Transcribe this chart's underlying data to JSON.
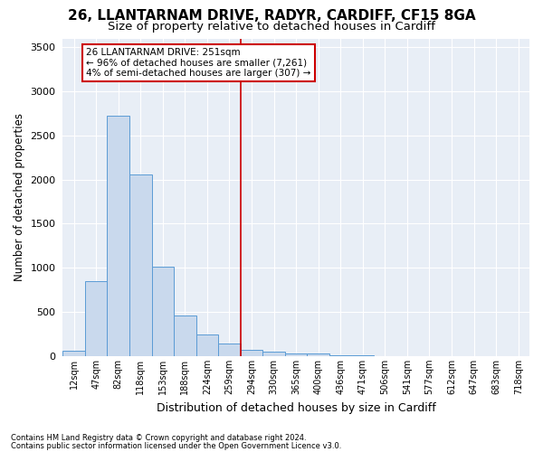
{
  "title_line1": "26, LLANTARNAM DRIVE, RADYR, CARDIFF, CF15 8GA",
  "title_line2": "Size of property relative to detached houses in Cardiff",
  "xlabel": "Distribution of detached houses by size in Cardiff",
  "ylabel": "Number of detached properties",
  "footnote1": "Contains HM Land Registry data © Crown copyright and database right 2024.",
  "footnote2": "Contains public sector information licensed under the Open Government Licence v3.0.",
  "annotation_line1": "26 LLANTARNAM DRIVE: 251sqm",
  "annotation_line2": "← 96% of detached houses are smaller (7,261)",
  "annotation_line3": "4% of semi-detached houses are larger (307) →",
  "bar_labels": [
    "12sqm",
    "47sqm",
    "82sqm",
    "118sqm",
    "153sqm",
    "188sqm",
    "224sqm",
    "259sqm",
    "294sqm",
    "330sqm",
    "365sqm",
    "400sqm",
    "436sqm",
    "471sqm",
    "506sqm",
    "541sqm",
    "577sqm",
    "612sqm",
    "647sqm",
    "683sqm",
    "718sqm"
  ],
  "bar_values": [
    60,
    850,
    2720,
    2060,
    1010,
    460,
    240,
    145,
    70,
    55,
    30,
    25,
    5,
    10,
    0,
    0,
    0,
    0,
    0,
    0,
    0
  ],
  "bar_color": "#c9d9ed",
  "bar_edge_color": "#5b9bd5",
  "vline_index": 7,
  "vline_color": "#cc0000",
  "ylim": [
    0,
    3600
  ],
  "yticks": [
    0,
    500,
    1000,
    1500,
    2000,
    2500,
    3000,
    3500
  ],
  "bg_color": "#e8eef6",
  "grid_color": "#ffffff",
  "title1_fontsize": 11,
  "title2_fontsize": 9.5
}
